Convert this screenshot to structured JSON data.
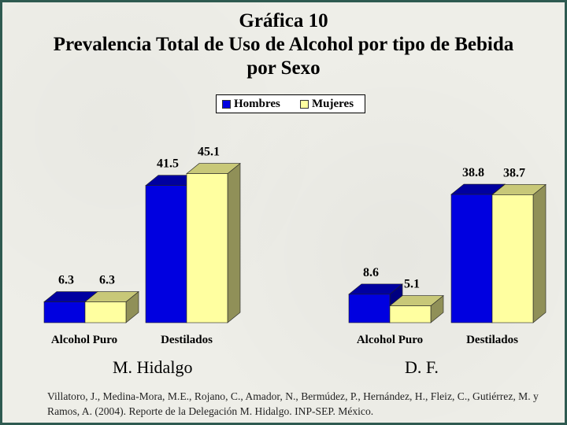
{
  "title": {
    "line1": "Gráfica 10",
    "line2": "Prevalencia Total de Uso de Alcohol por tipo de Bebida",
    "line3": "por Sexo"
  },
  "legend": {
    "items": [
      {
        "label": "Hombres",
        "color": "#0000e0"
      },
      {
        "label": "Mujeres",
        "color": "#ffffa0"
      }
    ]
  },
  "chart_data": [
    {
      "type": "bar",
      "title": "M. Hidalgo",
      "categories": [
        "Alcohol Puro",
        "Destilados"
      ],
      "series": [
        {
          "name": "Hombres",
          "values": [
            6.3,
            41.5
          ]
        },
        {
          "name": "Mujeres",
          "values": [
            6.3,
            45.1
          ]
        }
      ],
      "value_labels": [
        [
          "6.3",
          "41.5"
        ],
        [
          "6.3",
          "45.1"
        ]
      ],
      "legend": "top-center",
      "grid": false
    },
    {
      "type": "bar",
      "title": "D. F.",
      "categories": [
        "Alcohol Puro",
        "Destilados"
      ],
      "series": [
        {
          "name": "Hombres",
          "values": [
            8.6,
            38.8
          ]
        },
        {
          "name": "Mujeres",
          "values": [
            5.1,
            38.7
          ]
        }
      ],
      "value_labels": [
        [
          "8.6",
          "38.8"
        ],
        [
          "5.1",
          "38.7"
        ]
      ],
      "legend": "top-center",
      "grid": false
    }
  ],
  "colors": {
    "hombres_front": "#0000e0",
    "hombres_top": "#0000a0",
    "hombres_side": "#000080",
    "mujeres_front": "#ffffa0",
    "mujeres_top": "#c8c878",
    "mujeres_side": "#909058"
  },
  "citation": "Villatoro, J., Medina-Mora, M.E., Rojano, C., Amador, N., Bermúdez, P., Hernández, H., Fleiz, C., Gutiérrez, M. y Ramos, A. (2004). Reporte de la Delegación M. Hidalgo. INP-SEP. México."
}
